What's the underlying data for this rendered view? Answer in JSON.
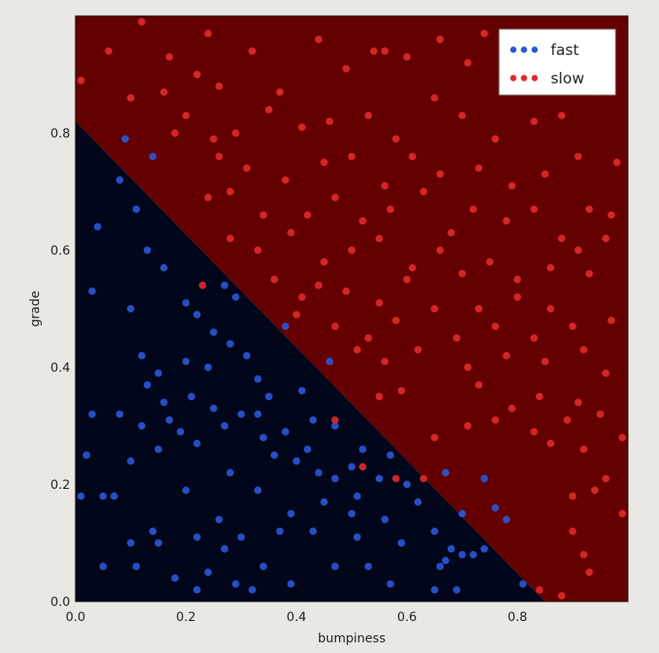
{
  "chart_data": {
    "type": "scatter",
    "title": "",
    "xlabel": "bumpiness",
    "ylabel": "grade",
    "xlim": [
      0,
      1
    ],
    "ylim": [
      0,
      1
    ],
    "x_ticks": [
      "0.0",
      "0.2",
      "0.4",
      "0.6",
      "0.8"
    ],
    "y_ticks": [
      "0.0",
      "0.2",
      "0.4",
      "0.6",
      "0.8"
    ],
    "x_tick_values": [
      0,
      0.2,
      0.4,
      0.6,
      0.8
    ],
    "y_tick_values": [
      0,
      0.2,
      0.4,
      0.6,
      0.8
    ],
    "grid": false,
    "legend_position": "top-right",
    "decision_boundary": {
      "points": [
        [
          0,
          0.82
        ],
        [
          0.85,
          0.0
        ]
      ],
      "below_class": "fast",
      "above_class": "slow",
      "below_color": "#02061a",
      "above_color": "#640000"
    },
    "series": [
      {
        "name": "fast",
        "color": "#2b57d8",
        "points": [
          [
            0.09,
            0.79
          ],
          [
            0.14,
            0.76
          ],
          [
            0.08,
            0.72
          ],
          [
            0.11,
            0.67
          ],
          [
            0.04,
            0.64
          ],
          [
            0.13,
            0.6
          ],
          [
            0.16,
            0.57
          ],
          [
            0.03,
            0.53
          ],
          [
            0.1,
            0.5
          ],
          [
            0.2,
            0.51
          ],
          [
            0.27,
            0.54
          ],
          [
            0.29,
            0.52
          ],
          [
            0.22,
            0.49
          ],
          [
            0.25,
            0.46
          ],
          [
            0.28,
            0.44
          ],
          [
            0.31,
            0.42
          ],
          [
            0.38,
            0.47
          ],
          [
            0.46,
            0.41
          ],
          [
            0.12,
            0.42
          ],
          [
            0.15,
            0.39
          ],
          [
            0.2,
            0.41
          ],
          [
            0.24,
            0.4
          ],
          [
            0.33,
            0.38
          ],
          [
            0.13,
            0.37
          ],
          [
            0.16,
            0.34
          ],
          [
            0.21,
            0.35
          ],
          [
            0.25,
            0.33
          ],
          [
            0.35,
            0.35
          ],
          [
            0.41,
            0.36
          ],
          [
            0.03,
            0.32
          ],
          [
            0.08,
            0.32
          ],
          [
            0.17,
            0.31
          ],
          [
            0.3,
            0.32
          ],
          [
            0.33,
            0.32
          ],
          [
            0.12,
            0.3
          ],
          [
            0.19,
            0.29
          ],
          [
            0.27,
            0.3
          ],
          [
            0.38,
            0.29
          ],
          [
            0.43,
            0.31
          ],
          [
            0.47,
            0.3
          ],
          [
            0.15,
            0.26
          ],
          [
            0.22,
            0.27
          ],
          [
            0.34,
            0.28
          ],
          [
            0.36,
            0.25
          ],
          [
            0.42,
            0.26
          ],
          [
            0.52,
            0.26
          ],
          [
            0.02,
            0.25
          ],
          [
            0.1,
            0.24
          ],
          [
            0.4,
            0.24
          ],
          [
            0.5,
            0.23
          ],
          [
            0.57,
            0.25
          ],
          [
            0.28,
            0.22
          ],
          [
            0.44,
            0.22
          ],
          [
            0.47,
            0.21
          ],
          [
            0.55,
            0.21
          ],
          [
            0.6,
            0.2
          ],
          [
            0.67,
            0.22
          ],
          [
            0.74,
            0.21
          ],
          [
            0.01,
            0.18
          ],
          [
            0.05,
            0.18
          ],
          [
            0.07,
            0.18
          ],
          [
            0.2,
            0.19
          ],
          [
            0.33,
            0.19
          ],
          [
            0.45,
            0.17
          ],
          [
            0.51,
            0.18
          ],
          [
            0.62,
            0.17
          ],
          [
            0.39,
            0.15
          ],
          [
            0.26,
            0.14
          ],
          [
            0.5,
            0.15
          ],
          [
            0.56,
            0.14
          ],
          [
            0.7,
            0.15
          ],
          [
            0.76,
            0.16
          ],
          [
            0.78,
            0.14
          ],
          [
            0.14,
            0.12
          ],
          [
            0.22,
            0.11
          ],
          [
            0.3,
            0.11
          ],
          [
            0.37,
            0.12
          ],
          [
            0.43,
            0.12
          ],
          [
            0.51,
            0.11
          ],
          [
            0.65,
            0.12
          ],
          [
            0.1,
            0.1
          ],
          [
            0.15,
            0.1
          ],
          [
            0.27,
            0.09
          ],
          [
            0.59,
            0.1
          ],
          [
            0.68,
            0.09
          ],
          [
            0.7,
            0.08
          ],
          [
            0.72,
            0.08
          ],
          [
            0.74,
            0.09
          ],
          [
            0.67,
            0.07
          ],
          [
            0.05,
            0.06
          ],
          [
            0.11,
            0.06
          ],
          [
            0.24,
            0.05
          ],
          [
            0.34,
            0.06
          ],
          [
            0.47,
            0.06
          ],
          [
            0.53,
            0.06
          ],
          [
            0.66,
            0.06
          ],
          [
            0.18,
            0.04
          ],
          [
            0.29,
            0.03
          ],
          [
            0.39,
            0.03
          ],
          [
            0.57,
            0.03
          ],
          [
            0.65,
            0.02
          ],
          [
            0.69,
            0.02
          ],
          [
            0.81,
            0.03
          ],
          [
            0.22,
            0.02
          ],
          [
            0.32,
            0.02
          ]
        ]
      },
      {
        "name": "slow",
        "color": "#e02a2a",
        "points": [
          [
            0.01,
            0.89
          ],
          [
            0.06,
            0.94
          ],
          [
            0.12,
            0.99
          ],
          [
            0.17,
            0.93
          ],
          [
            0.22,
            0.9
          ],
          [
            0.24,
            0.97
          ],
          [
            0.26,
            0.88
          ],
          [
            0.32,
            0.94
          ],
          [
            0.37,
            0.87
          ],
          [
            0.44,
            0.96
          ],
          [
            0.49,
            0.91
          ],
          [
            0.54,
            0.94
          ],
          [
            0.56,
            0.94
          ],
          [
            0.6,
            0.93
          ],
          [
            0.66,
            0.96
          ],
          [
            0.71,
            0.92
          ],
          [
            0.74,
            0.97
          ],
          [
            0.79,
            0.95
          ],
          [
            0.82,
            0.9
          ],
          [
            0.9,
            0.94
          ],
          [
            0.97,
            0.93
          ],
          [
            0.86,
            0.96
          ],
          [
            0.1,
            0.86
          ],
          [
            0.16,
            0.87
          ],
          [
            0.2,
            0.83
          ],
          [
            0.26,
            0.76
          ],
          [
            0.29,
            0.8
          ],
          [
            0.35,
            0.84
          ],
          [
            0.41,
            0.81
          ],
          [
            0.46,
            0.82
          ],
          [
            0.53,
            0.83
          ],
          [
            0.58,
            0.79
          ],
          [
            0.65,
            0.86
          ],
          [
            0.7,
            0.83
          ],
          [
            0.76,
            0.79
          ],
          [
            0.83,
            0.82
          ],
          [
            0.88,
            0.83
          ],
          [
            0.94,
            0.87
          ],
          [
            0.18,
            0.8
          ],
          [
            0.25,
            0.79
          ],
          [
            0.31,
            0.74
          ],
          [
            0.38,
            0.72
          ],
          [
            0.45,
            0.75
          ],
          [
            0.5,
            0.76
          ],
          [
            0.56,
            0.71
          ],
          [
            0.61,
            0.76
          ],
          [
            0.66,
            0.73
          ],
          [
            0.73,
            0.74
          ],
          [
            0.79,
            0.71
          ],
          [
            0.85,
            0.73
          ],
          [
            0.91,
            0.76
          ],
          [
            0.98,
            0.75
          ],
          [
            0.24,
            0.69
          ],
          [
            0.28,
            0.7
          ],
          [
            0.34,
            0.66
          ],
          [
            0.42,
            0.66
          ],
          [
            0.47,
            0.69
          ],
          [
            0.52,
            0.65
          ],
          [
            0.57,
            0.67
          ],
          [
            0.63,
            0.7
          ],
          [
            0.68,
            0.63
          ],
          [
            0.72,
            0.67
          ],
          [
            0.78,
            0.65
          ],
          [
            0.83,
            0.67
          ],
          [
            0.88,
            0.62
          ],
          [
            0.93,
            0.67
          ],
          [
            0.97,
            0.66
          ],
          [
            0.28,
            0.62
          ],
          [
            0.33,
            0.6
          ],
          [
            0.39,
            0.63
          ],
          [
            0.45,
            0.58
          ],
          [
            0.5,
            0.6
          ],
          [
            0.55,
            0.62
          ],
          [
            0.61,
            0.57
          ],
          [
            0.66,
            0.6
          ],
          [
            0.7,
            0.56
          ],
          [
            0.75,
            0.58
          ],
          [
            0.8,
            0.55
          ],
          [
            0.86,
            0.57
          ],
          [
            0.91,
            0.6
          ],
          [
            0.96,
            0.62
          ],
          [
            0.36,
            0.55
          ],
          [
            0.41,
            0.52
          ],
          [
            0.44,
            0.54
          ],
          [
            0.49,
            0.53
          ],
          [
            0.55,
            0.51
          ],
          [
            0.6,
            0.55
          ],
          [
            0.65,
            0.5
          ],
          [
            0.73,
            0.5
          ],
          [
            0.8,
            0.52
          ],
          [
            0.86,
            0.5
          ],
          [
            0.93,
            0.56
          ],
          [
            0.4,
            0.49
          ],
          [
            0.47,
            0.47
          ],
          [
            0.53,
            0.45
          ],
          [
            0.58,
            0.48
          ],
          [
            0.69,
            0.45
          ],
          [
            0.76,
            0.47
          ],
          [
            0.83,
            0.45
          ],
          [
            0.9,
            0.47
          ],
          [
            0.97,
            0.48
          ],
          [
            0.51,
            0.43
          ],
          [
            0.56,
            0.41
          ],
          [
            0.62,
            0.43
          ],
          [
            0.71,
            0.4
          ],
          [
            0.78,
            0.42
          ],
          [
            0.85,
            0.41
          ],
          [
            0.92,
            0.43
          ],
          [
            0.55,
            0.35
          ],
          [
            0.59,
            0.36
          ],
          [
            0.73,
            0.37
          ],
          [
            0.79,
            0.33
          ],
          [
            0.84,
            0.35
          ],
          [
            0.91,
            0.34
          ],
          [
            0.96,
            0.39
          ],
          [
            0.76,
            0.31
          ],
          [
            0.83,
            0.29
          ],
          [
            0.89,
            0.31
          ],
          [
            0.95,
            0.32
          ],
          [
            0.99,
            0.28
          ],
          [
            0.86,
            0.27
          ],
          [
            0.92,
            0.26
          ],
          [
            0.71,
            0.3
          ],
          [
            0.65,
            0.28
          ],
          [
            0.23,
            0.54
          ],
          [
            0.47,
            0.31
          ],
          [
            0.52,
            0.23
          ],
          [
            0.58,
            0.21
          ],
          [
            0.63,
            0.21
          ],
          [
            0.9,
            0.12
          ],
          [
            0.92,
            0.08
          ],
          [
            0.93,
            0.05
          ],
          [
            0.88,
            0.01
          ],
          [
            0.84,
            0.02
          ],
          [
            0.96,
            0.21
          ],
          [
            0.99,
            0.15
          ],
          [
            0.9,
            0.18
          ],
          [
            0.94,
            0.19
          ]
        ]
      }
    ]
  }
}
